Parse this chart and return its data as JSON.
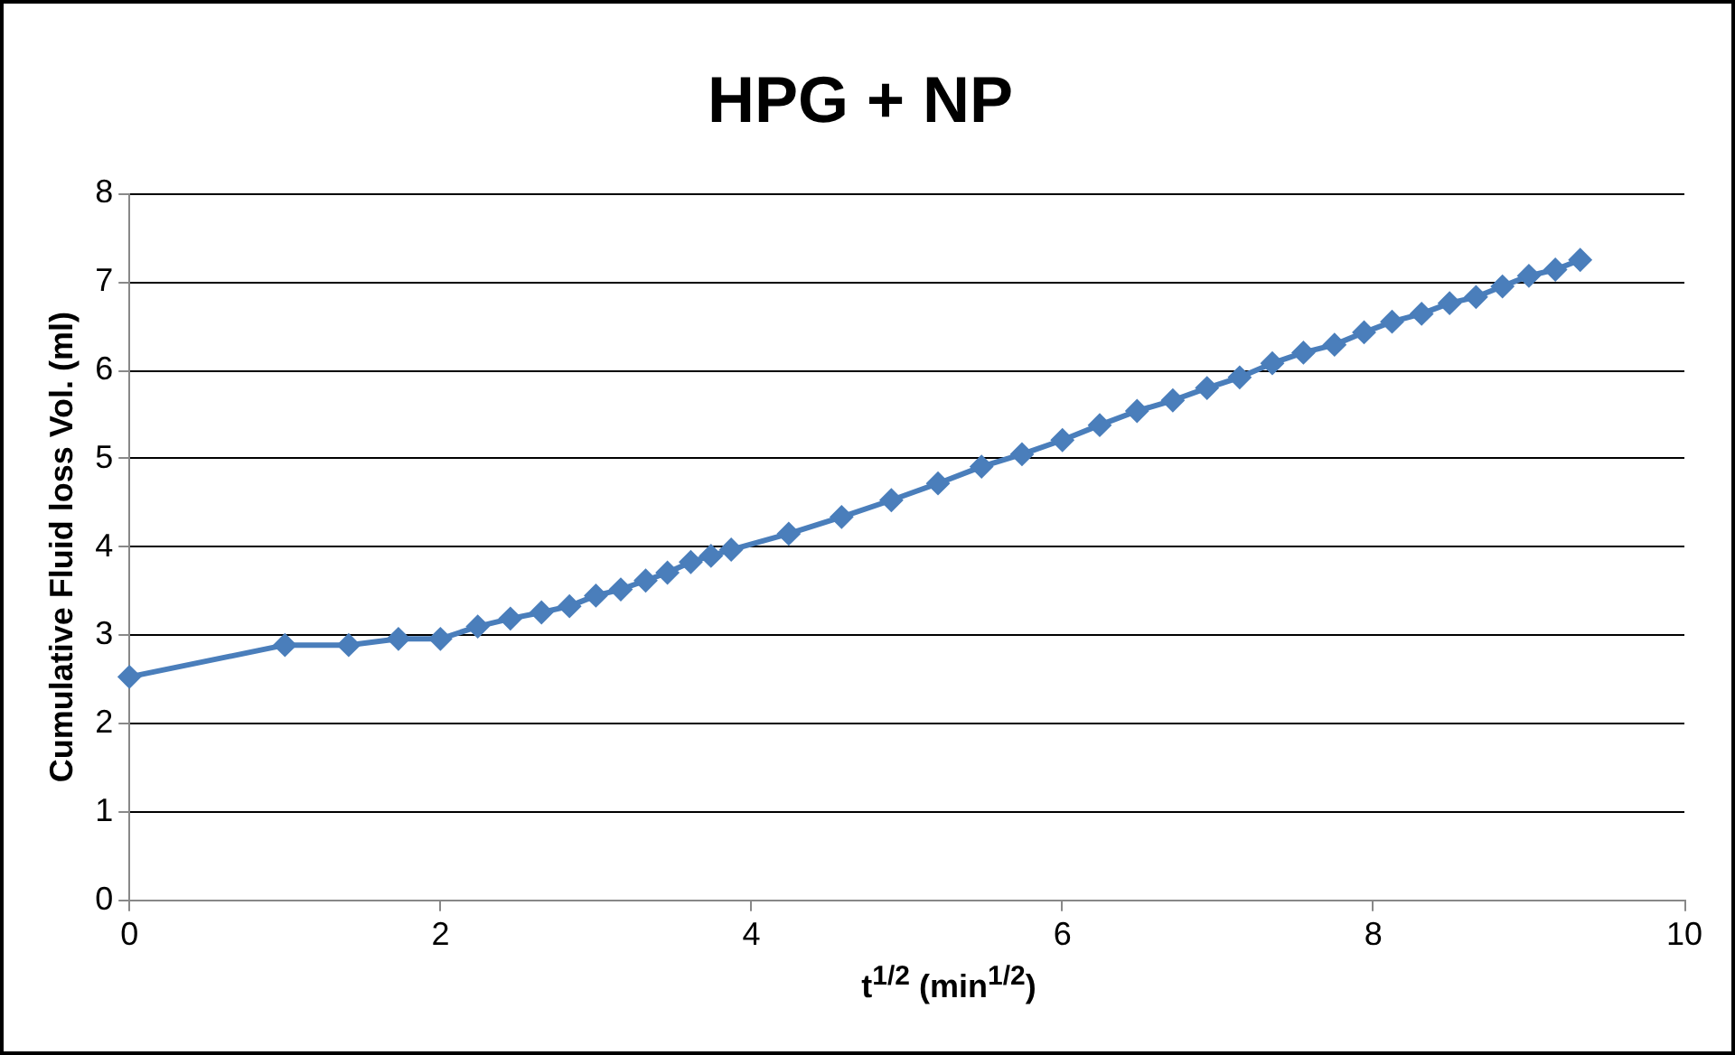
{
  "chart_data": {
    "type": "line",
    "title": "HPG + NP",
    "xlabel": "t$^{1/2}$ (min$^{1/2}$)",
    "ylabel": "Cumulative Fluid loss Vol. (ml)",
    "x": [
      0,
      1,
      1.41,
      1.73,
      2,
      2.24,
      2.45,
      2.65,
      2.83,
      3,
      3.16,
      3.32,
      3.46,
      3.61,
      3.74,
      3.87,
      4.24,
      4.58,
      4.9,
      5.2,
      5.48,
      5.74,
      6,
      6.24,
      6.48,
      6.71,
      6.93,
      7.14,
      7.35,
      7.55,
      7.75,
      7.94,
      8.12,
      8.31,
      8.49,
      8.66,
      8.83,
      9,
      9.17,
      9.33
    ],
    "series": [
      {
        "color": "#4a7ebb",
        "values": [
          2.53,
          2.89,
          2.89,
          2.96,
          2.96,
          3.1,
          3.19,
          3.26,
          3.33,
          3.45,
          3.52,
          3.62,
          3.71,
          3.83,
          3.9,
          3.97,
          4.15,
          4.34,
          4.53,
          4.72,
          4.91,
          5.05,
          5.21,
          5.38,
          5.54,
          5.66,
          5.8,
          5.92,
          6.08,
          6.2,
          6.29,
          6.43,
          6.55,
          6.64,
          6.76,
          6.83,
          6.95,
          7.07,
          7.14,
          7.25
        ]
      }
    ],
    "xlim": [
      0,
      10
    ],
    "xticks": [
      0,
      2,
      4,
      6,
      8,
      10
    ],
    "ylim": [
      0,
      8
    ],
    "yticks": [
      0,
      1,
      2,
      3,
      4,
      5,
      6,
      7,
      8
    ],
    "grid": "y",
    "legend": false,
    "marker": "diamond",
    "line_style": "solid"
  }
}
